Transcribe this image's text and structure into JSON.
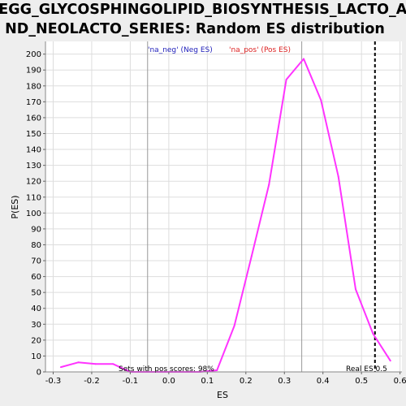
{
  "chart_data": {
    "type": "line",
    "title_line1": "KEGG_GLYCOSPHINGOLIPID_BIOSYNTHESIS_LACTO_A",
    "title_line2": "ND_NEOLACTO_SERIES: Random ES distribution",
    "xlabel": "ES",
    "ylabel": "P(ES)",
    "xlim": [
      -0.32,
      0.605
    ],
    "ylim": [
      0,
      208
    ],
    "x_ticks": [
      -0.3,
      -0.2,
      -0.1,
      0.0,
      0.1,
      0.2,
      0.3,
      0.4,
      0.5,
      0.6
    ],
    "x_tick_labels": [
      "-0.3",
      "-0.2",
      "-0.1",
      "0.0",
      "0.1",
      "0.2",
      "0.3",
      "0.4",
      "0.5",
      "0.6"
    ],
    "y_ticks": [
      0,
      10,
      20,
      30,
      40,
      50,
      60,
      70,
      80,
      90,
      100,
      110,
      120,
      130,
      140,
      150,
      160,
      170,
      180,
      190,
      200
    ],
    "grid": true,
    "series": [
      {
        "name": "",
        "color": "#ff33ff",
        "x": [
          -0.28,
          -0.235,
          -0.19,
          -0.145,
          -0.1,
          -0.055,
          -0.01,
          0.035,
          0.08,
          0.125,
          0.17,
          0.215,
          0.26,
          0.305,
          0.35,
          0.395,
          0.44,
          0.485,
          0.53,
          0.575
        ],
        "y": [
          3,
          6,
          5,
          5,
          0,
          0,
          0,
          0,
          0,
          1,
          29,
          73,
          118,
          184,
          197,
          171,
          123,
          52,
          24,
          7
        ]
      }
    ],
    "vlines": [
      {
        "x": -0.055,
        "color": "#999999",
        "style": "solid"
      },
      {
        "x": 0.345,
        "color": "#999999",
        "style": "solid"
      },
      {
        "x": 0.535,
        "color": "#000000",
        "style": "dashed"
      }
    ],
    "annotations": {
      "neg_label": "'na_neg' (Neg ES)",
      "neg_color": "#2222bb",
      "pos_label": "'na_pos' (Pos ES)",
      "pos_color": "#dd2222",
      "sets_label": "Sets with pos scores: 98%",
      "real_es_label": "Real ES 0.5"
    }
  }
}
